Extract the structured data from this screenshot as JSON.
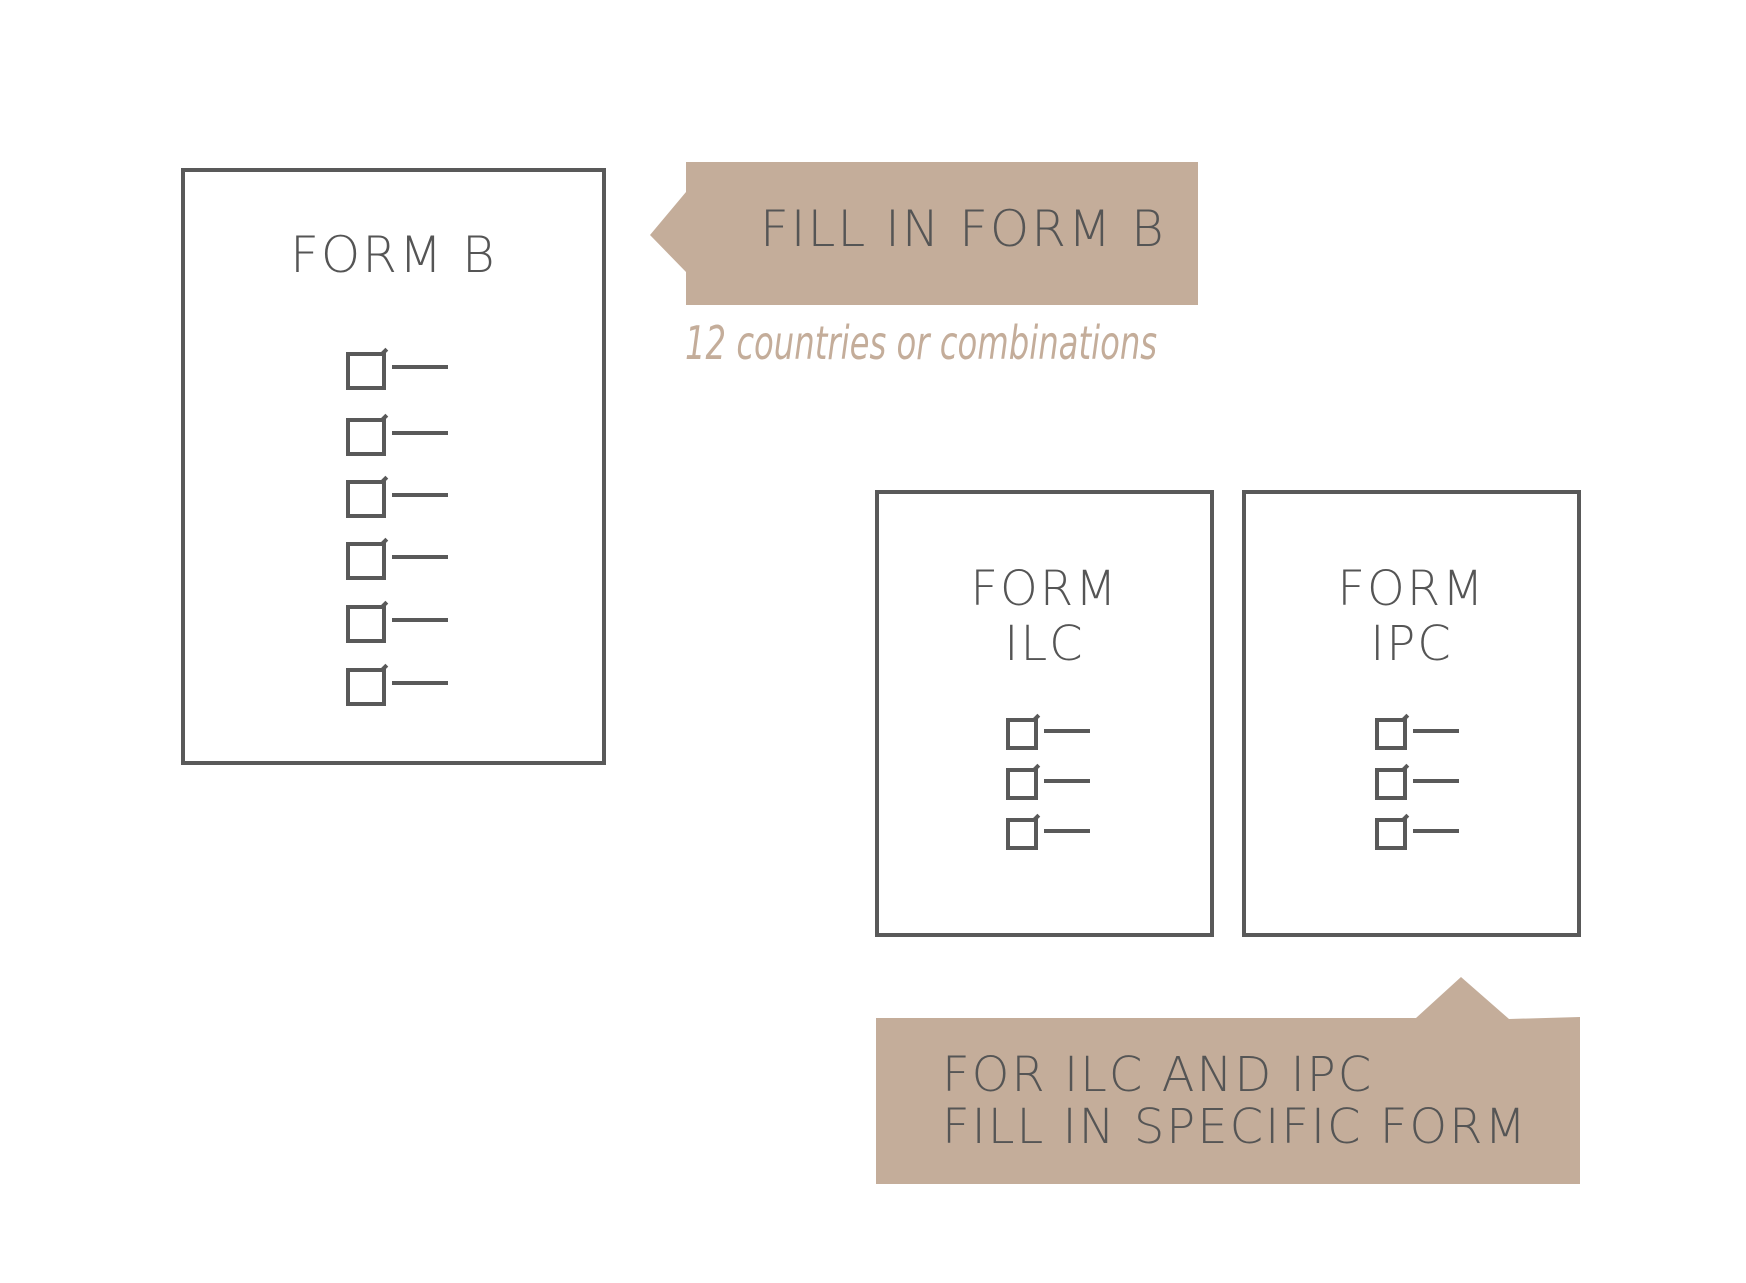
{
  "colors": {
    "outline": "#595959",
    "text": "#555555",
    "banner_fill": "#c4ad9a",
    "caption": "#c4ad9a",
    "background": "#ffffff"
  },
  "form_b": {
    "title": "FORM B",
    "checklist_count": 6
  },
  "banner_fill_form_b": {
    "text": "FILL IN FORM B",
    "subcaption": "12 countries or combinations"
  },
  "form_ilc": {
    "title_line1": "FORM",
    "title_line2": "ILC",
    "checklist_count": 3
  },
  "form_ipc": {
    "title_line1": "FORM",
    "title_line2": "IPC",
    "checklist_count": 3
  },
  "banner_specific_form": {
    "line1": "FOR ILC AND IPC",
    "line2": "FILL IN SPECIFIC FORM"
  }
}
